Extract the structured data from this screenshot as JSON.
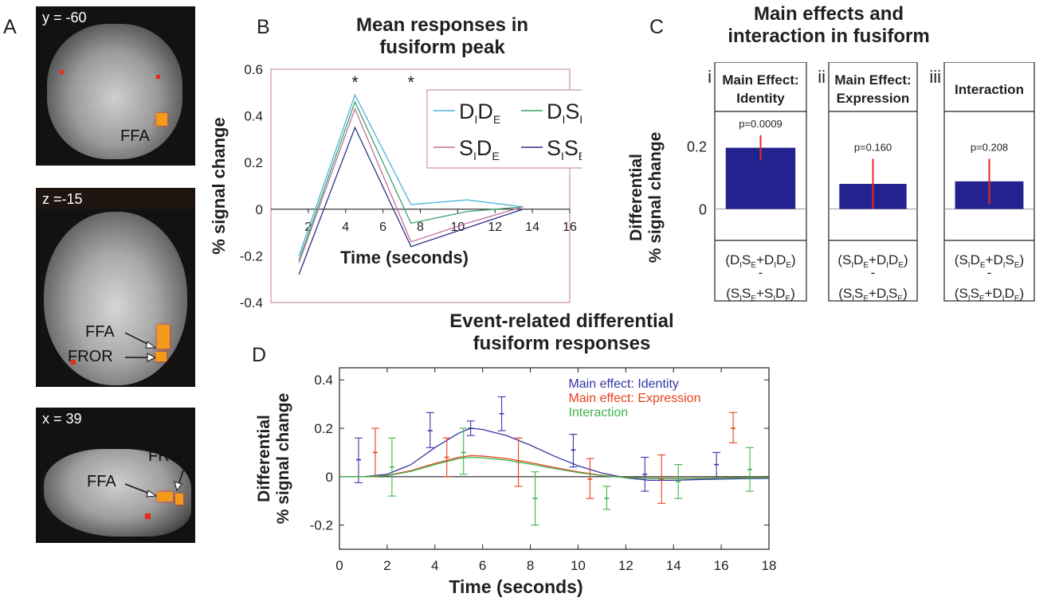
{
  "panels": {
    "A": {
      "letter": "A",
      "slices": [
        {
          "coord": "y = -60",
          "labels": [
            "FFA"
          ]
        },
        {
          "coord": "z =-15",
          "labels": [
            "FFA",
            "FROR"
          ]
        },
        {
          "coord": "x = 39",
          "labels": [
            "FFA",
            "FROR"
          ]
        }
      ]
    },
    "B": {
      "letter": "B",
      "title_line1": "Mean responses in",
      "title_line2": "fusiform peak"
    },
    "C": {
      "letter": "C",
      "title_line1": "Main effects and",
      "title_line2": "interaction in fusiform"
    },
    "D": {
      "letter": "D",
      "title_line1": "Event-related differential",
      "title_line2": "fusiform responses"
    }
  },
  "colors": {
    "DIDE": "#4fb3d9",
    "DISE": "#3aa36a",
    "SIDE": "#c0709a",
    "SISE": "#2b2f8a",
    "bar": "#23238f",
    "errorbar": "#e8291c",
    "identity": "#3535a8",
    "expression": "#e8401c",
    "interaction": "#3cb44b"
  },
  "chart_data": [
    {
      "id": "B",
      "type": "line",
      "title": "Mean responses in fusiform peak",
      "xlabel": "Time (seconds)",
      "ylabel": "% signal change",
      "xlim": [
        0,
        16
      ],
      "ylim": [
        -0.4,
        0.6
      ],
      "x_ticks": [
        2,
        4,
        6,
        8,
        10,
        12,
        14,
        16
      ],
      "y_ticks": [
        -0.4,
        -0.2,
        0,
        0.2,
        0.4,
        0.6
      ],
      "significance_markers": [
        {
          "x": 4.5,
          "label": "*"
        },
        {
          "x": 7.5,
          "label": "*"
        }
      ],
      "x": [
        1.5,
        4.5,
        7.5,
        10.5,
        13.5
      ],
      "series": [
        {
          "key": "DIDE",
          "values": [
            -0.2,
            0.49,
            0.02,
            0.04,
            0.01
          ]
        },
        {
          "key": "DISE",
          "values": [
            -0.22,
            0.46,
            -0.06,
            -0.01,
            0.01
          ]
        },
        {
          "key": "SIDE",
          "values": [
            -0.23,
            0.43,
            -0.14,
            -0.06,
            0.01
          ]
        },
        {
          "key": "SISE",
          "values": [
            -0.28,
            0.35,
            -0.16,
            -0.08,
            0.0
          ]
        }
      ],
      "legend": {
        "placement": "top-right"
      }
    },
    {
      "id": "C",
      "type": "bar",
      "title": "Main effects and interaction in fusiform",
      "ylabel_line1": "Differential",
      "ylabel_line2": "% signal change",
      "ylim": [
        -0.1,
        0.27
      ],
      "y_ticks": [
        0,
        0.2
      ],
      "subpanels": [
        {
          "numeral": "i",
          "header_line1": "Main Effect:",
          "header_line2": "Identity",
          "value": 0.195,
          "error_low": 0.155,
          "error_high": 0.235,
          "p_label": "p=0.0009"
        },
        {
          "numeral": "ii",
          "header_line1": "Main Effect:",
          "header_line2": "Expression",
          "value": 0.08,
          "error_low": 0.0,
          "error_high": 0.16,
          "p_label": "p=0.160"
        },
        {
          "numeral": "iii",
          "header_line1": "Interaction",
          "header_line2": "",
          "value": 0.088,
          "error_low": 0.016,
          "error_high": 0.16,
          "p_label": "p=0.208"
        }
      ]
    },
    {
      "id": "D",
      "type": "line",
      "title": "Event-related differential fusiform responses",
      "xlabel": "Time (seconds)",
      "ylabel_line1": "Differential",
      "ylabel_line2": "% signal change",
      "xlim": [
        0,
        18
      ],
      "ylim": [
        -0.3,
        0.45
      ],
      "x_ticks": [
        0,
        2,
        4,
        6,
        8,
        10,
        12,
        14,
        16,
        18
      ],
      "y_ticks": [
        -0.2,
        0,
        0.2,
        0.4
      ],
      "legend": {
        "placement": "top-right"
      },
      "series": [
        {
          "name": "Main effect: Identity",
          "key": "identity",
          "curve_x": [
            0,
            1,
            2,
            3,
            4,
            5,
            5.5,
            6,
            7,
            8,
            9,
            10,
            11,
            12,
            13,
            14,
            15,
            16,
            17,
            18
          ],
          "curve_y": [
            0,
            0.0,
            0.01,
            0.05,
            0.12,
            0.18,
            0.2,
            0.195,
            0.17,
            0.13,
            0.085,
            0.045,
            0.015,
            -0.005,
            -0.015,
            -0.015,
            -0.012,
            -0.01,
            -0.008,
            -0.007
          ],
          "points": [
            {
              "x": 0.8,
              "y": 0.07,
              "lo": -0.025,
              "hi": 0.16
            },
            {
              "x": 3.8,
              "y": 0.19,
              "lo": 0.12,
              "hi": 0.265
            },
            {
              "x": 5.5,
              "y": 0.2,
              "lo": 0.17,
              "hi": 0.23
            },
            {
              "x": 6.8,
              "y": 0.26,
              "lo": 0.19,
              "hi": 0.33
            },
            {
              "x": 9.8,
              "y": 0.11,
              "lo": 0.04,
              "hi": 0.175
            },
            {
              "x": 12.8,
              "y": 0.01,
              "lo": -0.06,
              "hi": 0.08
            },
            {
              "x": 15.8,
              "y": 0.05,
              "lo": -0.01,
              "hi": 0.1
            }
          ]
        },
        {
          "name": "Main effect: Expression",
          "key": "expression",
          "curve_x": [
            0,
            1,
            2,
            3,
            4,
            5,
            5.5,
            6,
            7,
            8,
            9,
            10,
            11,
            12,
            13,
            14,
            15,
            16,
            17,
            18
          ],
          "curve_y": [
            0,
            0.0,
            0.005,
            0.025,
            0.055,
            0.08,
            0.087,
            0.085,
            0.075,
            0.058,
            0.038,
            0.02,
            0.005,
            -0.003,
            -0.006,
            -0.007,
            -0.006,
            -0.005,
            -0.004,
            -0.003
          ],
          "points": [
            {
              "x": 1.5,
              "y": 0.1,
              "lo": 0.0,
              "hi": 0.2
            },
            {
              "x": 4.5,
              "y": 0.08,
              "lo": 0.0,
              "hi": 0.16
            },
            {
              "x": 7.5,
              "y": 0.06,
              "lo": -0.04,
              "hi": 0.16
            },
            {
              "x": 10.5,
              "y": -0.01,
              "lo": -0.09,
              "hi": 0.075
            },
            {
              "x": 13.5,
              "y": -0.01,
              "lo": -0.11,
              "hi": 0.09
            },
            {
              "x": 16.5,
              "y": 0.2,
              "lo": 0.14,
              "hi": 0.265
            }
          ]
        },
        {
          "name": "Interaction",
          "key": "interaction",
          "curve_x": [
            0,
            1,
            2,
            3,
            4,
            5,
            5.5,
            6,
            7,
            8,
            9,
            10,
            11,
            12,
            13,
            14,
            15,
            16,
            17,
            18
          ],
          "curve_y": [
            0,
            0.0,
            0.004,
            0.022,
            0.05,
            0.075,
            0.08,
            0.078,
            0.068,
            0.052,
            0.034,
            0.017,
            0.004,
            -0.004,
            -0.007,
            -0.008,
            -0.007,
            -0.006,
            -0.005,
            -0.004
          ],
          "points": [
            {
              "x": 2.2,
              "y": 0.04,
              "lo": -0.08,
              "hi": 0.16
            },
            {
              "x": 5.2,
              "y": 0.1,
              "lo": 0.01,
              "hi": 0.2
            },
            {
              "x": 8.2,
              "y": -0.09,
              "lo": -0.2,
              "hi": 0.02
            },
            {
              "x": 11.2,
              "y": -0.09,
              "lo": -0.135,
              "hi": -0.04
            },
            {
              "x": 14.2,
              "y": -0.02,
              "lo": -0.09,
              "hi": 0.05
            },
            {
              "x": 17.2,
              "y": 0.03,
              "lo": -0.06,
              "hi": 0.12
            }
          ]
        }
      ]
    }
  ]
}
